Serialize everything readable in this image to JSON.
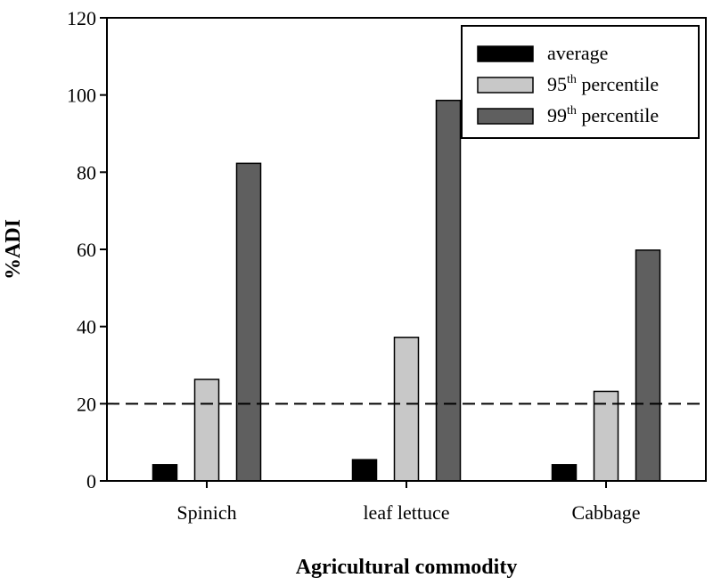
{
  "chart_data": {
    "type": "bar",
    "categories": [
      "Spinich",
      "leaf lettuce",
      "Cabbage"
    ],
    "series": [
      {
        "name": "average",
        "color": "#000000",
        "values": [
          4.2,
          5.5,
          4.2
        ]
      },
      {
        "name": "95th percentile",
        "name_base": "95",
        "name_sup": "th",
        "name_rest": " percentile",
        "color": "#c8c8c8",
        "values": [
          26.3,
          37.2,
          23.2
        ]
      },
      {
        "name": "99th percentile",
        "name_base": "99",
        "name_sup": "th",
        "name_rest": " percentile",
        "color": "#5f5f5f",
        "values": [
          82.3,
          98.6,
          59.8
        ]
      }
    ],
    "xlabel": "Agricultural commodity",
    "ylabel": "%ADI",
    "ylim": [
      0,
      120
    ],
    "yticks": [
      0,
      20,
      40,
      60,
      80,
      100,
      120
    ],
    "reference_line": {
      "value": 20,
      "style": "dashed"
    },
    "grid": false,
    "legend_position": "top-right"
  }
}
